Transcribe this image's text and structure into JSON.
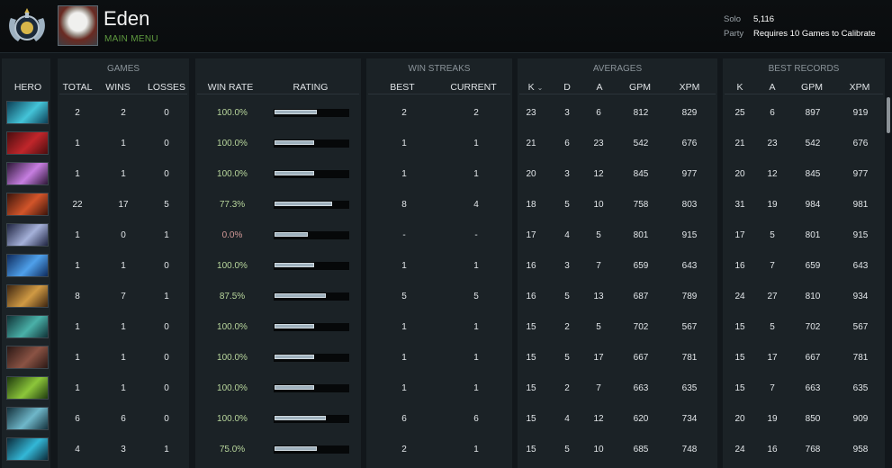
{
  "profile": {
    "username": "Eden",
    "subtitle": "MAIN MENU",
    "solo_label": "Solo",
    "solo_value": "5,116",
    "party_label": "Party",
    "party_value": "Requires 10 Games to Calibrate"
  },
  "headers": {
    "groups": {
      "games": "GAMES",
      "win_streaks": "WIN STREAKS",
      "averages": "AVERAGES",
      "best_records": "BEST RECORDS"
    },
    "hero": "HERO",
    "total": "TOTAL",
    "wins": "WINS",
    "losses": "LOSSES",
    "win_rate": "WIN RATE",
    "rating": "RATING",
    "best": "BEST",
    "current": "CURRENT",
    "k": "K",
    "sort_icon": "chevron-down-icon",
    "d": "D",
    "a": "A",
    "gpm": "GPM",
    "xpm": "XPM",
    "best_k": "K",
    "best_a": "A",
    "best_gpm": "GPM",
    "best_xpm": "XPM"
  },
  "rows": [
    {
      "hero_icon": "hero-portrait-icon",
      "colors": [
        "#0c3f56",
        "#44c4d8"
      ],
      "total": "2",
      "wins": "2",
      "losses": "0",
      "win_rate": "100.0%",
      "rating": 0.57,
      "streak_best": "2",
      "streak_current": "2",
      "k": "23",
      "d": "3",
      "a": "6",
      "gpm": "812",
      "xpm": "829",
      "best_k": "25",
      "best_a": "6",
      "best_gpm": "897",
      "best_xpm": "919"
    },
    {
      "hero_icon": "hero-portrait-icon",
      "colors": [
        "#4a0d0e",
        "#c0262b"
      ],
      "total": "1",
      "wins": "1",
      "losses": "0",
      "win_rate": "100.0%",
      "rating": 0.54,
      "streak_best": "1",
      "streak_current": "1",
      "k": "21",
      "d": "6",
      "a": "23",
      "gpm": "542",
      "xpm": "676",
      "best_k": "21",
      "best_a": "23",
      "best_gpm": "542",
      "best_xpm": "676"
    },
    {
      "hero_icon": "hero-portrait-icon",
      "colors": [
        "#2c1636",
        "#c67ee0"
      ],
      "total": "1",
      "wins": "1",
      "losses": "0",
      "win_rate": "100.0%",
      "rating": 0.54,
      "streak_best": "1",
      "streak_current": "1",
      "k": "20",
      "d": "3",
      "a": "12",
      "gpm": "845",
      "xpm": "977",
      "best_k": "20",
      "best_a": "12",
      "best_gpm": "845",
      "best_xpm": "977"
    },
    {
      "hero_icon": "hero-portrait-icon",
      "colors": [
        "#3b140b",
        "#d2552a"
      ],
      "total": "22",
      "wins": "17",
      "losses": "5",
      "win_rate": "77.3%",
      "rating": 0.78,
      "streak_best": "8",
      "streak_current": "4",
      "k": "18",
      "d": "5",
      "a": "10",
      "gpm": "758",
      "xpm": "803",
      "best_k": "31",
      "best_a": "19",
      "best_gpm": "984",
      "best_xpm": "981"
    },
    {
      "hero_icon": "hero-portrait-icon",
      "colors": [
        "#1e2340",
        "#a5b1d9"
      ],
      "total": "1",
      "wins": "0",
      "losses": "1",
      "win_rate": "0.0%",
      "rating": 0.45,
      "streak_best": "-",
      "streak_current": "-",
      "k": "17",
      "d": "4",
      "a": "5",
      "gpm": "801",
      "xpm": "915",
      "best_k": "17",
      "best_a": "5",
      "best_gpm": "801",
      "best_xpm": "915"
    },
    {
      "hero_icon": "hero-portrait-icon",
      "colors": [
        "#0e2a5c",
        "#4fa0ea"
      ],
      "total": "1",
      "wins": "1",
      "losses": "0",
      "win_rate": "100.0%",
      "rating": 0.54,
      "streak_best": "1",
      "streak_current": "1",
      "k": "16",
      "d": "3",
      "a": "7",
      "gpm": "659",
      "xpm": "643",
      "best_k": "16",
      "best_a": "7",
      "best_gpm": "659",
      "best_xpm": "643"
    },
    {
      "hero_icon": "hero-portrait-icon",
      "colors": [
        "#3c2410",
        "#d09a44"
      ],
      "total": "8",
      "wins": "7",
      "losses": "1",
      "win_rate": "87.5%",
      "rating": 0.7,
      "streak_best": "5",
      "streak_current": "5",
      "k": "16",
      "d": "5",
      "a": "13",
      "gpm": "687",
      "xpm": "789",
      "best_k": "24",
      "best_a": "27",
      "best_gpm": "810",
      "best_xpm": "934"
    },
    {
      "hero_icon": "hero-portrait-icon",
      "colors": [
        "#0f3236",
        "#4ab0a8"
      ],
      "total": "1",
      "wins": "1",
      "losses": "0",
      "win_rate": "100.0%",
      "rating": 0.54,
      "streak_best": "1",
      "streak_current": "1",
      "k": "15",
      "d": "2",
      "a": "5",
      "gpm": "702",
      "xpm": "567",
      "best_k": "15",
      "best_a": "5",
      "best_gpm": "702",
      "best_xpm": "567"
    },
    {
      "hero_icon": "hero-portrait-icon",
      "colors": [
        "#2a1815",
        "#8a5344"
      ],
      "total": "1",
      "wins": "1",
      "losses": "0",
      "win_rate": "100.0%",
      "rating": 0.54,
      "streak_best": "1",
      "streak_current": "1",
      "k": "15",
      "d": "5",
      "a": "17",
      "gpm": "667",
      "xpm": "781",
      "best_k": "15",
      "best_a": "17",
      "best_gpm": "667",
      "best_xpm": "781"
    },
    {
      "hero_icon": "hero-portrait-icon",
      "colors": [
        "#1e3a0e",
        "#8cc63a"
      ],
      "total": "1",
      "wins": "1",
      "losses": "0",
      "win_rate": "100.0%",
      "rating": 0.54,
      "streak_best": "1",
      "streak_current": "1",
      "k": "15",
      "d": "2",
      "a": "7",
      "gpm": "663",
      "xpm": "635",
      "best_k": "15",
      "best_a": "7",
      "best_gpm": "663",
      "best_xpm": "635"
    },
    {
      "hero_icon": "hero-portrait-icon",
      "colors": [
        "#14313c",
        "#6fb7c9"
      ],
      "total": "6",
      "wins": "6",
      "losses": "0",
      "win_rate": "100.0%",
      "rating": 0.7,
      "streak_best": "6",
      "streak_current": "6",
      "k": "15",
      "d": "4",
      "a": "12",
      "gpm": "620",
      "xpm": "734",
      "best_k": "20",
      "best_a": "19",
      "best_gpm": "850",
      "best_xpm": "909"
    },
    {
      "hero_icon": "hero-portrait-icon",
      "colors": [
        "#0c2b3a",
        "#33b7d6"
      ],
      "total": "4",
      "wins": "3",
      "losses": "1",
      "win_rate": "75.0%",
      "rating": 0.57,
      "streak_best": "2",
      "streak_current": "1",
      "k": "15",
      "d": "5",
      "a": "10",
      "gpm": "685",
      "xpm": "748",
      "best_k": "24",
      "best_a": "16",
      "best_gpm": "768",
      "best_xpm": "958"
    }
  ],
  "colors": {
    "accent_green": "#5f9a3f",
    "win_rate_green": "#b8d69c",
    "win_rate_red": "#d49a98"
  }
}
